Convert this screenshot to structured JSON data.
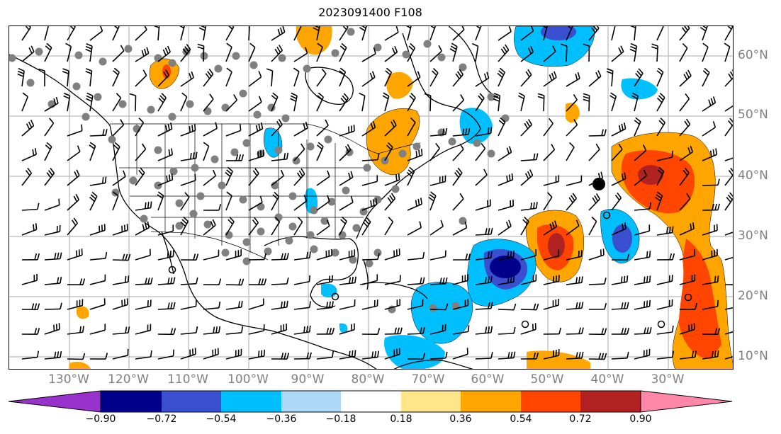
{
  "title": "2023091400 F108",
  "latitude_labels": [
    "60°N",
    "50°N",
    "40°N",
    "30°N",
    "20°N",
    "10°N"
  ],
  "longitude_labels": [
    "130°W",
    "120°W",
    "110°W",
    "100°W",
    "90°W",
    "80°W",
    "70°W",
    "60°W",
    "50°W",
    "40°W",
    "30°W"
  ],
  "colorbar": {
    "ticks": [
      "−0.90",
      "−0.72",
      "−0.54",
      "−0.36",
      "−0.18",
      "0.18",
      "0.36",
      "0.54",
      "0.72",
      "0.90"
    ],
    "colors": [
      "#9932CC",
      "#00008B",
      "#3A4FCF",
      "#00BFFF",
      "#ADD8F6",
      "#FFFFFF",
      "#FFE68A",
      "#FFA500",
      "#FF4500",
      "#B22222",
      "#FF88AA"
    ]
  },
  "legend_colors": {
    "land_outline": "#000000",
    "grid": "#AAAAAA",
    "station_marker": "#808080"
  }
}
